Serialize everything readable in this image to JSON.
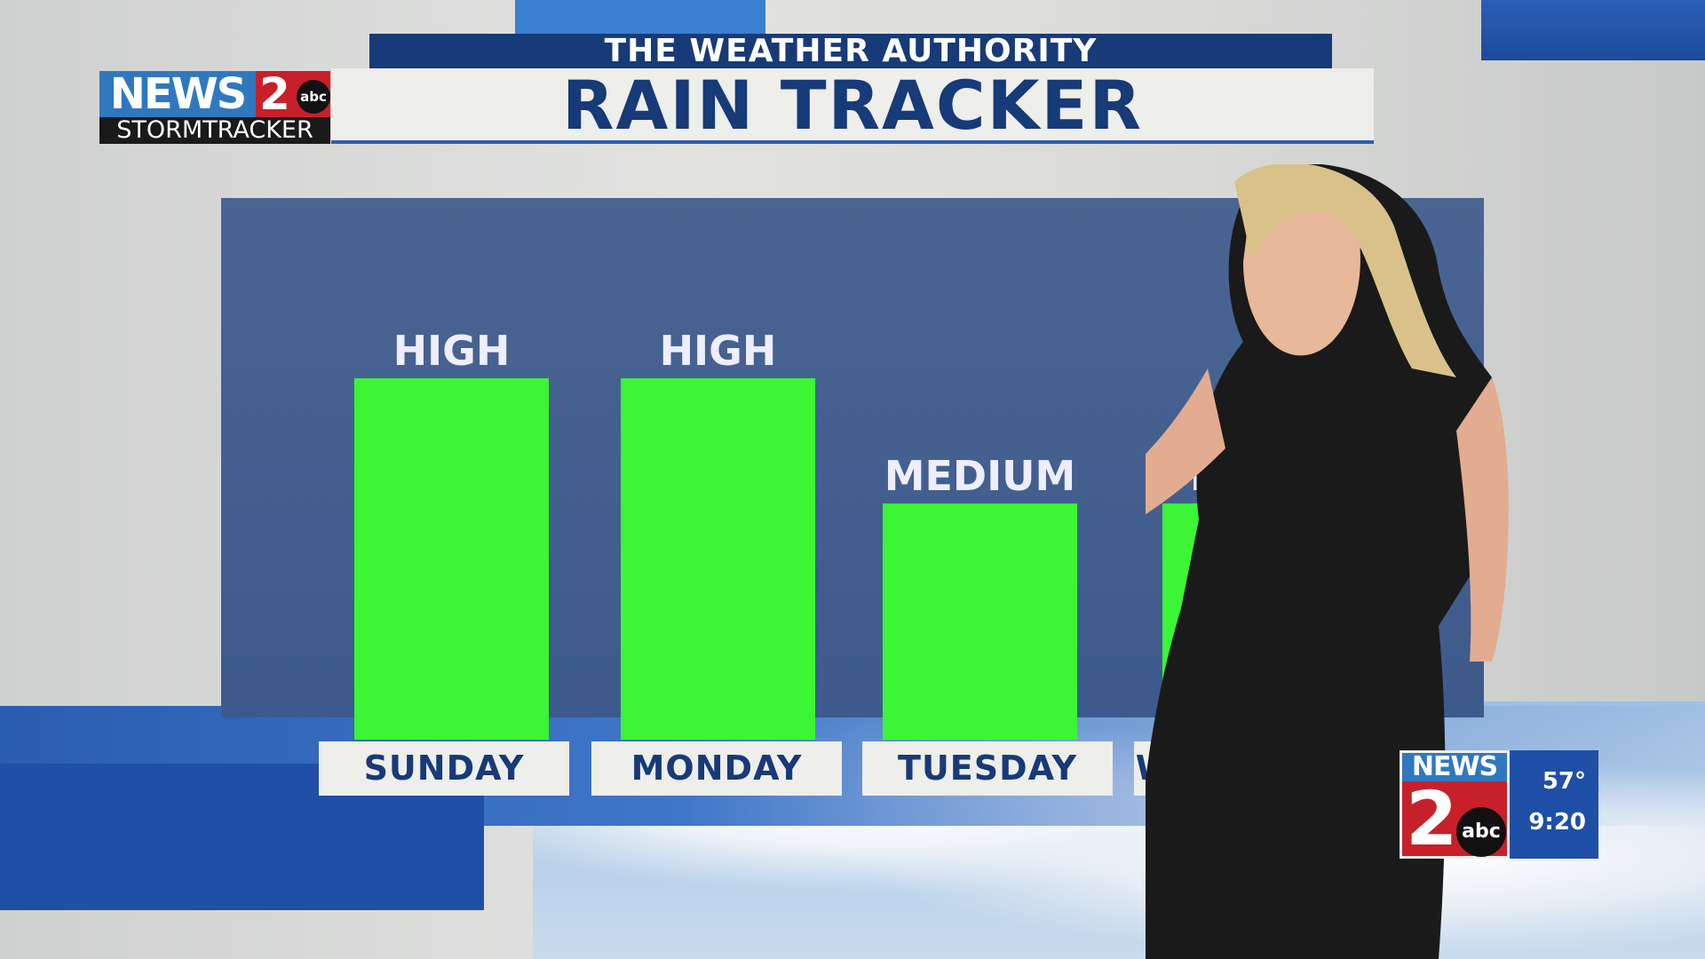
{
  "header": {
    "supertitle": "THE WEATHER AUTHORITY",
    "title": "RAIN TRACKER"
  },
  "logo": {
    "news": "NEWS",
    "number": "2",
    "network": "abc",
    "brand": "STORMTRACKER"
  },
  "bug": {
    "news": "NEWS",
    "number": "2",
    "network": "abc",
    "temperature": "57°",
    "time": "9:20"
  },
  "colors": {
    "bar": "#3cf534",
    "navy": "#173a78",
    "panel": "#45608f",
    "accent_blue": "#2f78bf",
    "red": "#c8202a"
  },
  "chart_data": {
    "type": "bar",
    "categories": [
      "SUNDAY",
      "MONDAY",
      "TUESDAY",
      "WEDNESDAY"
    ],
    "values": [
      "HIGH",
      "HIGH",
      "MEDIUM",
      "MEDIUM"
    ],
    "title": "RAIN TRACKER",
    "xlabel": "",
    "ylabel": ""
  }
}
